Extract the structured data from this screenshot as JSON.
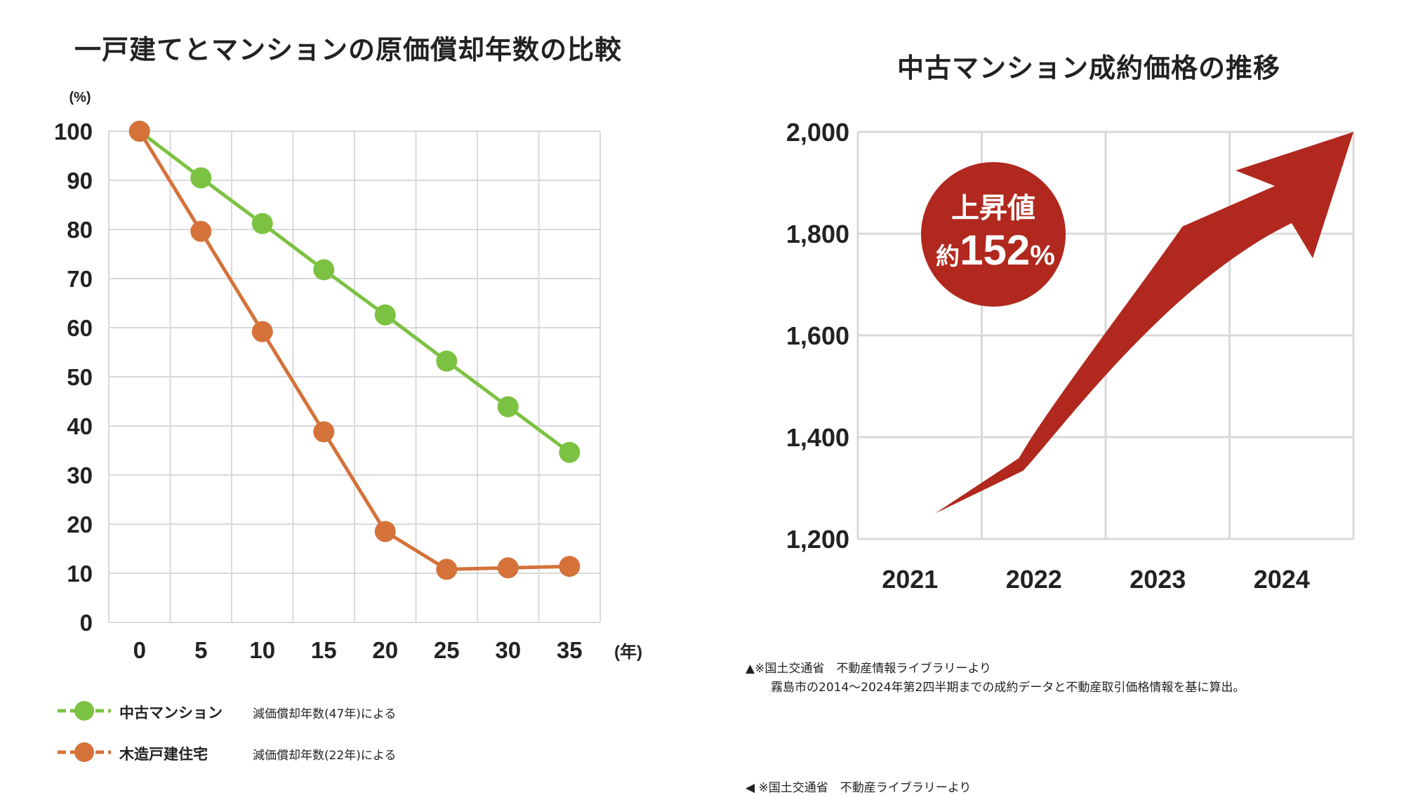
{
  "left_chart": {
    "title": "一戸建てとマンションの原価償却年数の比較",
    "y_unit": "(%)",
    "x_unit": "(年)",
    "legend": [
      {
        "label": "中古マンション",
        "note": "減価償却年数(47年)による"
      },
      {
        "label": "木造戸建住宅",
        "note": "減価償却年数(22年)による"
      }
    ]
  },
  "right_chart": {
    "title": "中古マンション成約価格の推移",
    "badge_line1": "上昇値",
    "badge_prefix": "約",
    "badge_value": "152",
    "badge_suffix": "%",
    "source_line1": "▲※国土交通省　不動産情報ライブラリーより",
    "source_line2": "霧島市の2014〜2024年第2四半期までの成約データと不動産取引価格情報を基に算出。"
  },
  "footer_note": "◀ ※国土交通省　不動産ライブラリーより",
  "colors": {
    "green": "#7cc242",
    "orange": "#d4723a",
    "red": "#b0281e",
    "grid": "#d9d9d9"
  },
  "chart_data": [
    {
      "type": "line",
      "title": "一戸建てとマンションの原価償却年数の比較",
      "xlabel": "(年)",
      "ylabel": "(%)",
      "x": [
        0,
        5,
        10,
        15,
        20,
        25,
        30,
        35
      ],
      "ylim": [
        0,
        100
      ],
      "yticks": [
        0,
        10,
        20,
        30,
        40,
        50,
        60,
        70,
        80,
        90,
        100
      ],
      "series": [
        {
          "name": "中古マンション",
          "values": [
            100,
            90.5,
            81.2,
            71.8,
            62.6,
            53.2,
            43.9,
            34.6
          ]
        },
        {
          "name": "木造戸建住宅",
          "values": [
            100,
            79.6,
            59.2,
            38.8,
            18.5,
            10.8,
            11.1,
            11.4
          ]
        }
      ],
      "legend": "bottom-left"
    },
    {
      "type": "area",
      "title": "中古マンション成約価格の推移",
      "categories": [
        "2021",
        "2022",
        "2023",
        "2024"
      ],
      "ylim": [
        1200,
        2000
      ],
      "yticks": [
        "1,200",
        "1,400",
        "1,600",
        "1,800",
        "2,000"
      ],
      "series": [
        {
          "name": "成約価格",
          "values": [
            1250,
            1345,
            1690,
            2000
          ]
        }
      ],
      "annotation": "上昇値 約152%"
    }
  ]
}
